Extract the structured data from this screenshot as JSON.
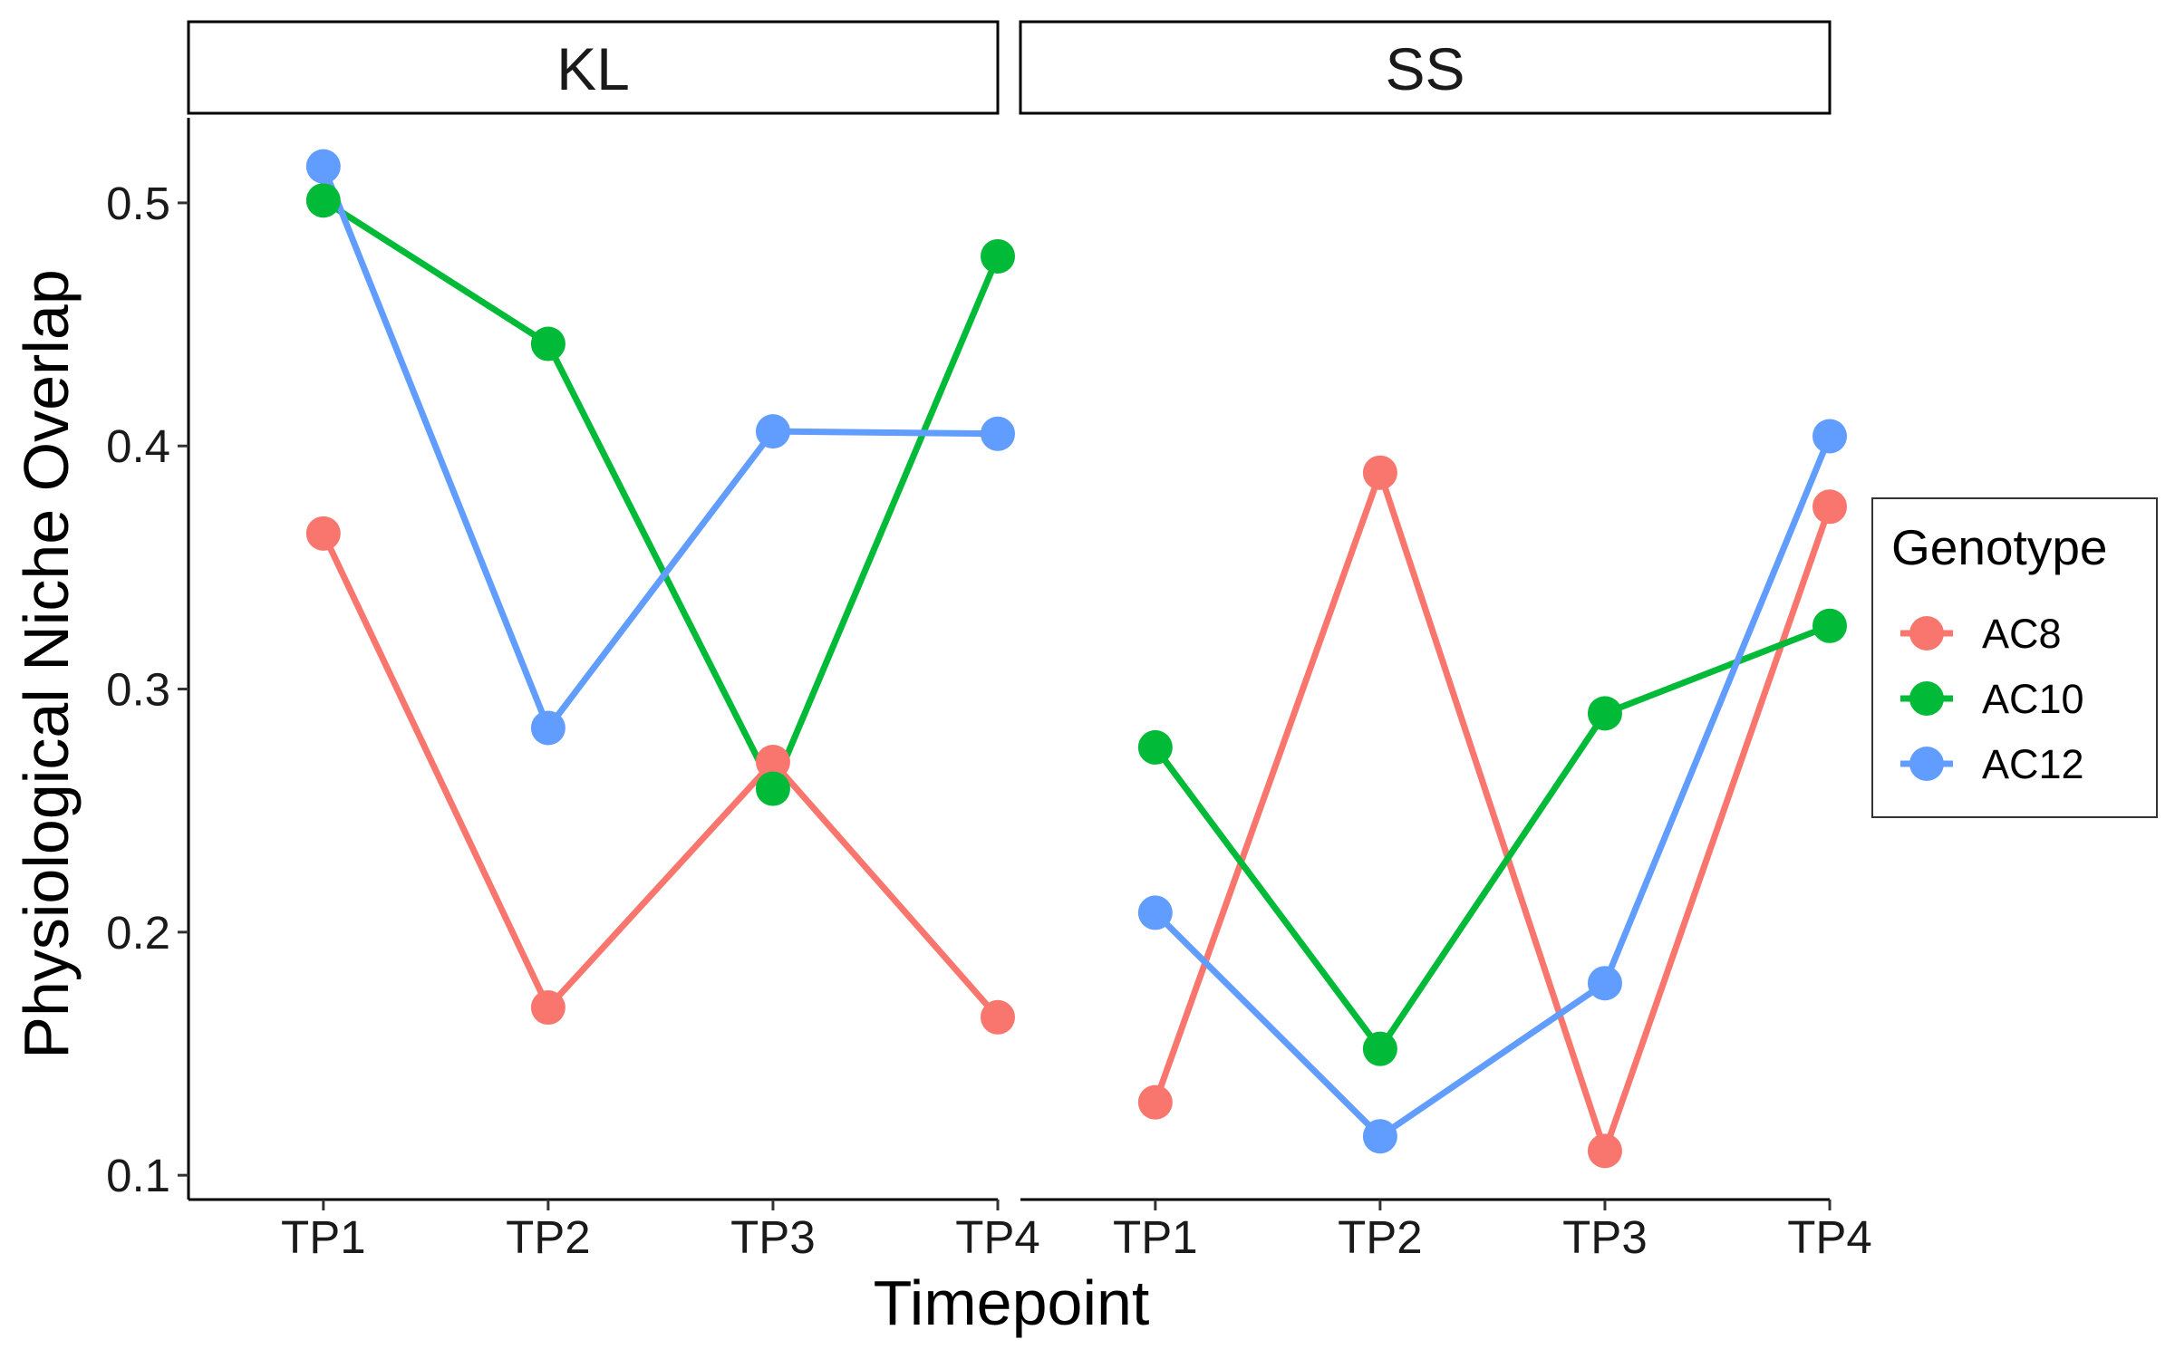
{
  "chart_data": {
    "type": "line",
    "xlabel": "Timepoint",
    "ylabel": "Physiological Niche Overlap",
    "categories": [
      "TP1",
      "TP2",
      "TP3",
      "TP4"
    ],
    "ylim": [
      0.09,
      0.535
    ],
    "yticks": [
      "0.1",
      "0.2",
      "0.3",
      "0.4",
      "0.5"
    ],
    "grid": false,
    "legend": {
      "title": "Genotype",
      "placement": "right",
      "entries": [
        "AC8",
        "AC10",
        "AC12"
      ]
    },
    "series_colors": {
      "AC8": "#F8766D",
      "AC10": "#00BA38",
      "AC12": "#619CFF"
    },
    "panels": [
      {
        "label": "KL",
        "series": [
          {
            "name": "AC8",
            "values": [
              0.364,
              0.169,
              0.27,
              0.165
            ]
          },
          {
            "name": "AC10",
            "values": [
              0.501,
              0.442,
              0.259,
              0.478
            ]
          },
          {
            "name": "AC12",
            "values": [
              0.515,
              0.284,
              0.406,
              0.405
            ]
          }
        ]
      },
      {
        "label": "SS",
        "series": [
          {
            "name": "AC8",
            "values": [
              0.13,
              0.389,
              0.11,
              0.375
            ]
          },
          {
            "name": "AC10",
            "values": [
              0.276,
              0.152,
              0.29,
              0.326
            ]
          },
          {
            "name": "AC12",
            "values": [
              0.208,
              0.116,
              0.179,
              0.404
            ]
          }
        ]
      }
    ]
  }
}
